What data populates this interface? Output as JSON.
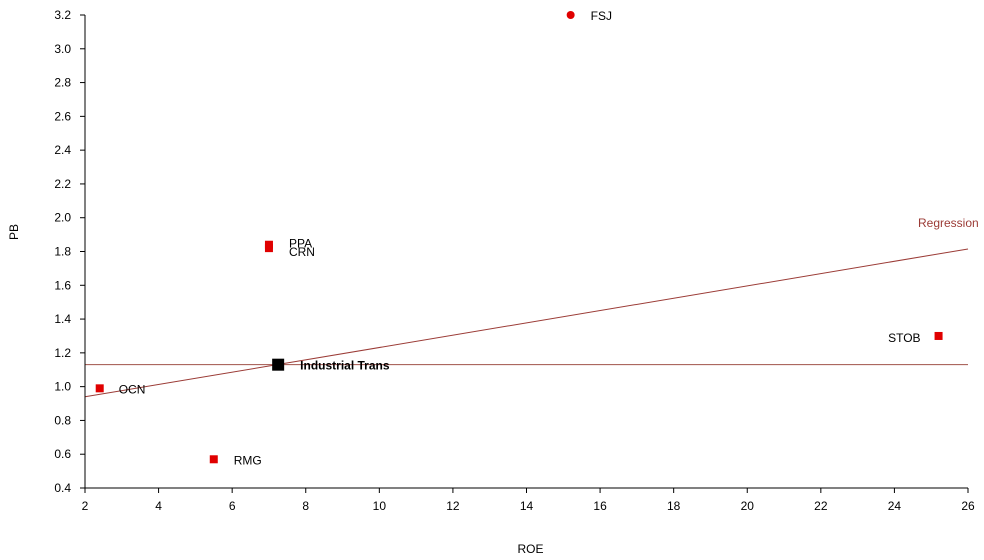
{
  "chart_data": {
    "type": "scatter",
    "title": "",
    "xlabel": "ROE",
    "ylabel": "PB",
    "xlim": [
      2,
      26
    ],
    "ylim": [
      0.4,
      3.2
    ],
    "xticks": [
      2,
      4,
      6,
      8,
      10,
      12,
      14,
      16,
      18,
      20,
      22,
      24,
      26
    ],
    "yticks": [
      0.4,
      0.6,
      0.8,
      1.0,
      1.2,
      1.4,
      1.6,
      1.8,
      2.0,
      2.2,
      2.4,
      2.6,
      2.8,
      3.0,
      3.2
    ],
    "grid": false,
    "points": [
      {
        "label": "FSJ",
        "x": 15.2,
        "y": 3.2,
        "marker": "circle",
        "color": "#e00000",
        "bold": false
      },
      {
        "label": "PPA",
        "x": 7.0,
        "y": 1.84,
        "marker": "square",
        "color": "#e00000",
        "bold": false
      },
      {
        "label": "CRN",
        "x": 7.0,
        "y": 1.82,
        "marker": "square",
        "color": "#e00000",
        "bold": false
      },
      {
        "label": "STOB",
        "x": 25.2,
        "y": 1.3,
        "marker": "square",
        "color": "#e00000",
        "bold": false
      },
      {
        "label": "Industrial Trans",
        "x": 7.25,
        "y": 1.13,
        "marker": "square-large",
        "color": "#000000",
        "bold": true
      },
      {
        "label": "OCN",
        "x": 2.4,
        "y": 0.99,
        "marker": "square",
        "color": "#e00000",
        "bold": false
      },
      {
        "label": "RMG",
        "x": 5.5,
        "y": 0.57,
        "marker": "square",
        "color": "#e00000",
        "bold": false
      }
    ],
    "average_line": {
      "y": 1.13,
      "color": "#a0524a"
    },
    "regression": {
      "label": "Regression",
      "x": [
        2,
        26
      ],
      "y": [
        0.94,
        1.815
      ],
      "color": "#9b3b36"
    }
  }
}
